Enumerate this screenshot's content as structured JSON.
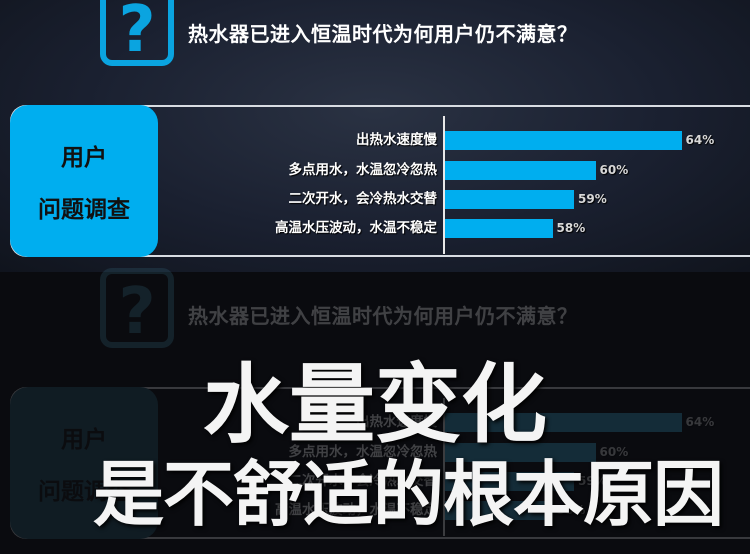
{
  "header": {
    "icon": "question-mark-icon",
    "title": "热水器已进入恒温时代为何用户仍不满意？"
  },
  "survey_box": {
    "line1": "用户",
    "line2": "问题调查"
  },
  "chart_data": {
    "type": "bar",
    "orientation": "horizontal",
    "categories": [
      "出热水速度慢",
      "多点用水，水温忽冷忽热",
      "二次开水，会冷热水交替",
      "高温水压波动，水温不稳定"
    ],
    "values": [
      64,
      60,
      59,
      58
    ],
    "value_labels": [
      "64%",
      "60%",
      "59%",
      "58%"
    ],
    "unit": "%",
    "xlim": [
      53,
      65
    ],
    "grid": false,
    "bar_color": "#00aeef"
  },
  "overlay": {
    "line1": "水量变化",
    "line2": "是不舒适的根本原因"
  },
  "colors": {
    "accent": "#00aeef",
    "background": "#1a2030"
  }
}
